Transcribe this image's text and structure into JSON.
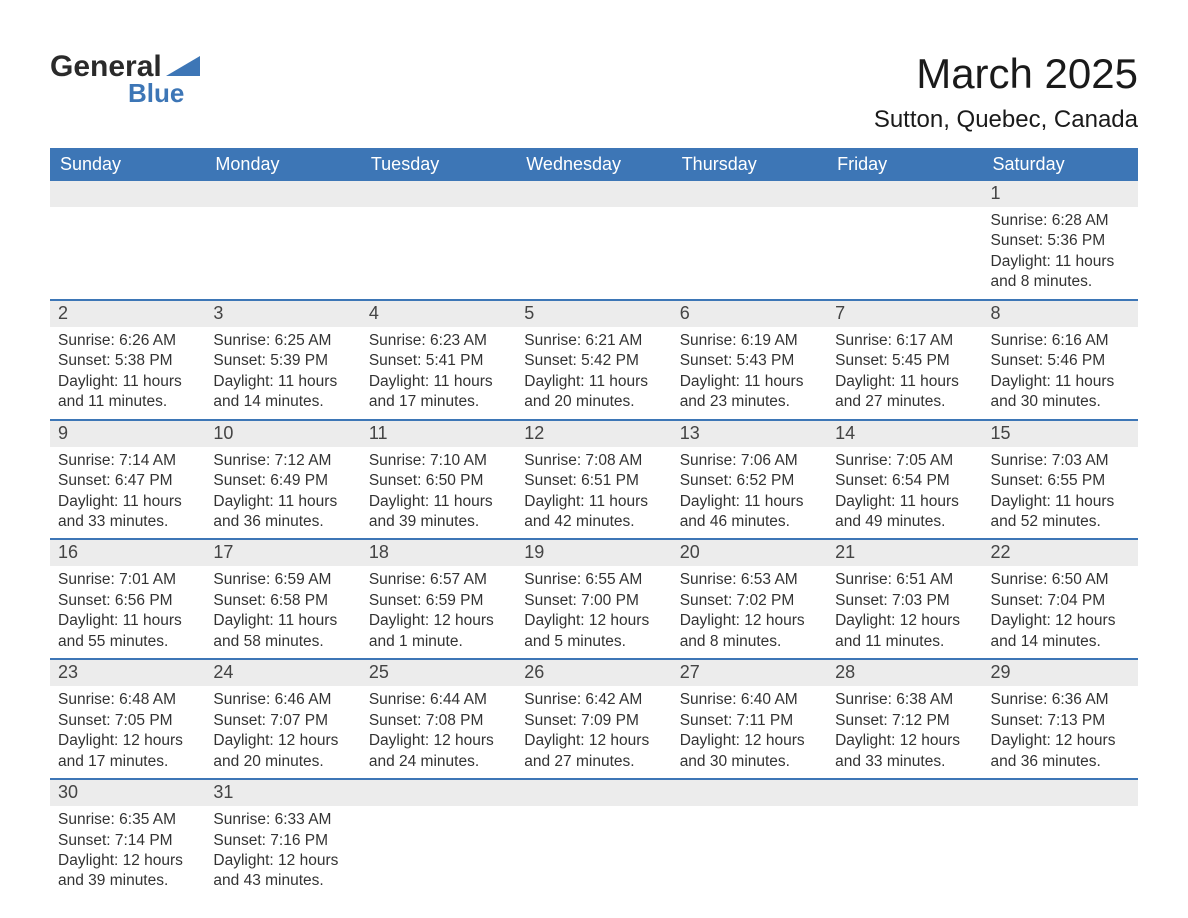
{
  "brand": {
    "general": "General",
    "blue": "Blue"
  },
  "title": "March 2025",
  "location": "Sutton, Quebec, Canada",
  "colors": {
    "header_bg": "#3d76b6",
    "header_text": "#ffffff",
    "daynum_bg": "#ececec",
    "row_border": "#3d76b6",
    "text": "#333333",
    "background": "#ffffff"
  },
  "weekdays": [
    "Sunday",
    "Monday",
    "Tuesday",
    "Wednesday",
    "Thursday",
    "Friday",
    "Saturday"
  ],
  "weeks": [
    [
      null,
      null,
      null,
      null,
      null,
      null,
      {
        "n": "1",
        "sunrise": "6:28 AM",
        "sunset": "5:36 PM",
        "daylight": "11 hours and 8 minutes."
      }
    ],
    [
      {
        "n": "2",
        "sunrise": "6:26 AM",
        "sunset": "5:38 PM",
        "daylight": "11 hours and 11 minutes."
      },
      {
        "n": "3",
        "sunrise": "6:25 AM",
        "sunset": "5:39 PM",
        "daylight": "11 hours and 14 minutes."
      },
      {
        "n": "4",
        "sunrise": "6:23 AM",
        "sunset": "5:41 PM",
        "daylight": "11 hours and 17 minutes."
      },
      {
        "n": "5",
        "sunrise": "6:21 AM",
        "sunset": "5:42 PM",
        "daylight": "11 hours and 20 minutes."
      },
      {
        "n": "6",
        "sunrise": "6:19 AM",
        "sunset": "5:43 PM",
        "daylight": "11 hours and 23 minutes."
      },
      {
        "n": "7",
        "sunrise": "6:17 AM",
        "sunset": "5:45 PM",
        "daylight": "11 hours and 27 minutes."
      },
      {
        "n": "8",
        "sunrise": "6:16 AM",
        "sunset": "5:46 PM",
        "daylight": "11 hours and 30 minutes."
      }
    ],
    [
      {
        "n": "9",
        "sunrise": "7:14 AM",
        "sunset": "6:47 PM",
        "daylight": "11 hours and 33 minutes."
      },
      {
        "n": "10",
        "sunrise": "7:12 AM",
        "sunset": "6:49 PM",
        "daylight": "11 hours and 36 minutes."
      },
      {
        "n": "11",
        "sunrise": "7:10 AM",
        "sunset": "6:50 PM",
        "daylight": "11 hours and 39 minutes."
      },
      {
        "n": "12",
        "sunrise": "7:08 AM",
        "sunset": "6:51 PM",
        "daylight": "11 hours and 42 minutes."
      },
      {
        "n": "13",
        "sunrise": "7:06 AM",
        "sunset": "6:52 PM",
        "daylight": "11 hours and 46 minutes."
      },
      {
        "n": "14",
        "sunrise": "7:05 AM",
        "sunset": "6:54 PM",
        "daylight": "11 hours and 49 minutes."
      },
      {
        "n": "15",
        "sunrise": "7:03 AM",
        "sunset": "6:55 PM",
        "daylight": "11 hours and 52 minutes."
      }
    ],
    [
      {
        "n": "16",
        "sunrise": "7:01 AM",
        "sunset": "6:56 PM",
        "daylight": "11 hours and 55 minutes."
      },
      {
        "n": "17",
        "sunrise": "6:59 AM",
        "sunset": "6:58 PM",
        "daylight": "11 hours and 58 minutes."
      },
      {
        "n": "18",
        "sunrise": "6:57 AM",
        "sunset": "6:59 PM",
        "daylight": "12 hours and 1 minute."
      },
      {
        "n": "19",
        "sunrise": "6:55 AM",
        "sunset": "7:00 PM",
        "daylight": "12 hours and 5 minutes."
      },
      {
        "n": "20",
        "sunrise": "6:53 AM",
        "sunset": "7:02 PM",
        "daylight": "12 hours and 8 minutes."
      },
      {
        "n": "21",
        "sunrise": "6:51 AM",
        "sunset": "7:03 PM",
        "daylight": "12 hours and 11 minutes."
      },
      {
        "n": "22",
        "sunrise": "6:50 AM",
        "sunset": "7:04 PM",
        "daylight": "12 hours and 14 minutes."
      }
    ],
    [
      {
        "n": "23",
        "sunrise": "6:48 AM",
        "sunset": "7:05 PM",
        "daylight": "12 hours and 17 minutes."
      },
      {
        "n": "24",
        "sunrise": "6:46 AM",
        "sunset": "7:07 PM",
        "daylight": "12 hours and 20 minutes."
      },
      {
        "n": "25",
        "sunrise": "6:44 AM",
        "sunset": "7:08 PM",
        "daylight": "12 hours and 24 minutes."
      },
      {
        "n": "26",
        "sunrise": "6:42 AM",
        "sunset": "7:09 PM",
        "daylight": "12 hours and 27 minutes."
      },
      {
        "n": "27",
        "sunrise": "6:40 AM",
        "sunset": "7:11 PM",
        "daylight": "12 hours and 30 minutes."
      },
      {
        "n": "28",
        "sunrise": "6:38 AM",
        "sunset": "7:12 PM",
        "daylight": "12 hours and 33 minutes."
      },
      {
        "n": "29",
        "sunrise": "6:36 AM",
        "sunset": "7:13 PM",
        "daylight": "12 hours and 36 minutes."
      }
    ],
    [
      {
        "n": "30",
        "sunrise": "6:35 AM",
        "sunset": "7:14 PM",
        "daylight": "12 hours and 39 minutes."
      },
      {
        "n": "31",
        "sunrise": "6:33 AM",
        "sunset": "7:16 PM",
        "daylight": "12 hours and 43 minutes."
      },
      null,
      null,
      null,
      null,
      null
    ]
  ],
  "labels": {
    "sunrise": "Sunrise: ",
    "sunset": "Sunset: ",
    "daylight": "Daylight: "
  }
}
